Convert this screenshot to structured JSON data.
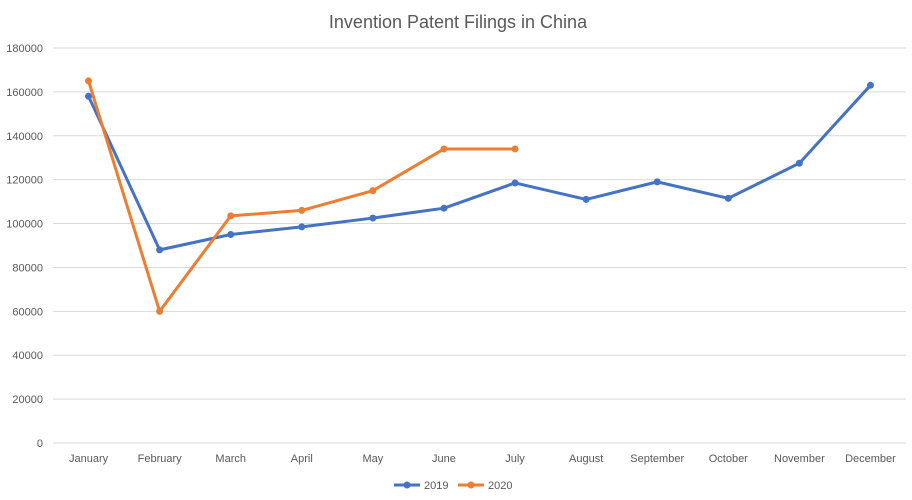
{
  "chart_data": {
    "type": "line",
    "title": "Invention Patent Filings in China",
    "xlabel": "",
    "ylabel": "",
    "categories": [
      "January",
      "February",
      "March",
      "April",
      "May",
      "June",
      "July",
      "August",
      "September",
      "October",
      "November",
      "December"
    ],
    "y_ticks": [
      0,
      20000,
      40000,
      60000,
      80000,
      100000,
      120000,
      140000,
      160000,
      180000
    ],
    "ylim": [
      0,
      180000
    ],
    "grid": true,
    "legend_position": "bottom",
    "series": [
      {
        "name": "2019",
        "color": "#4472c4",
        "values": [
          158000,
          88000,
          95000,
          98500,
          102500,
          107000,
          118500,
          111000,
          119000,
          111500,
          127500,
          163000
        ]
      },
      {
        "name": "2020",
        "color": "#ed7d31",
        "values": [
          165000,
          60000,
          103500,
          106000,
          115000,
          134000,
          134000,
          null,
          null,
          null,
          null,
          null
        ]
      }
    ]
  }
}
